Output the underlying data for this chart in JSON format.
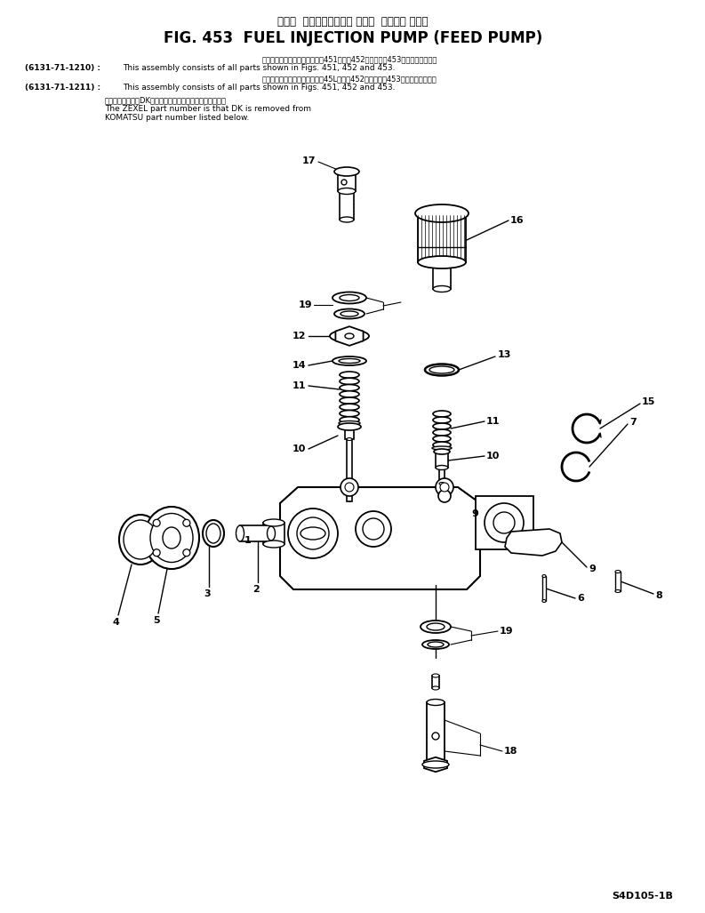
{
  "title_japanese": "フェル  インジェクション ポンプ  フィード ポンプ",
  "title_english": "FIG. 453  FUEL INJECTION PUMP (FEED PUMP)",
  "note1_code": "(6131-71-1210) :",
  "note1_jp": "このアセンブリの構成部品は第451図、第452図および第453図を見て下さい。",
  "note1_en": "This assembly consists of all parts shown in Figs. 451, 452 and 453.",
  "note2_code": "(6131-71-1211) :",
  "note2_jp": "このアセンブリの構成部品は第45L図、第452図および第453図を見て下さい。",
  "note2_en": "This assembly consists of all parts shown in Figs. 451, 452 and 453.",
  "note3_jp": "品番のメーカ記号DKを抜いたものがゼクセルの品番です。",
  "note3_en1": "The ZEXEL part number is that DK is removed from",
  "note3_en2": "KOMATSU part number listed below.",
  "model_code": "S4D105-1B",
  "bg_color": "#ffffff",
  "line_color": "#000000",
  "text_color": "#000000"
}
